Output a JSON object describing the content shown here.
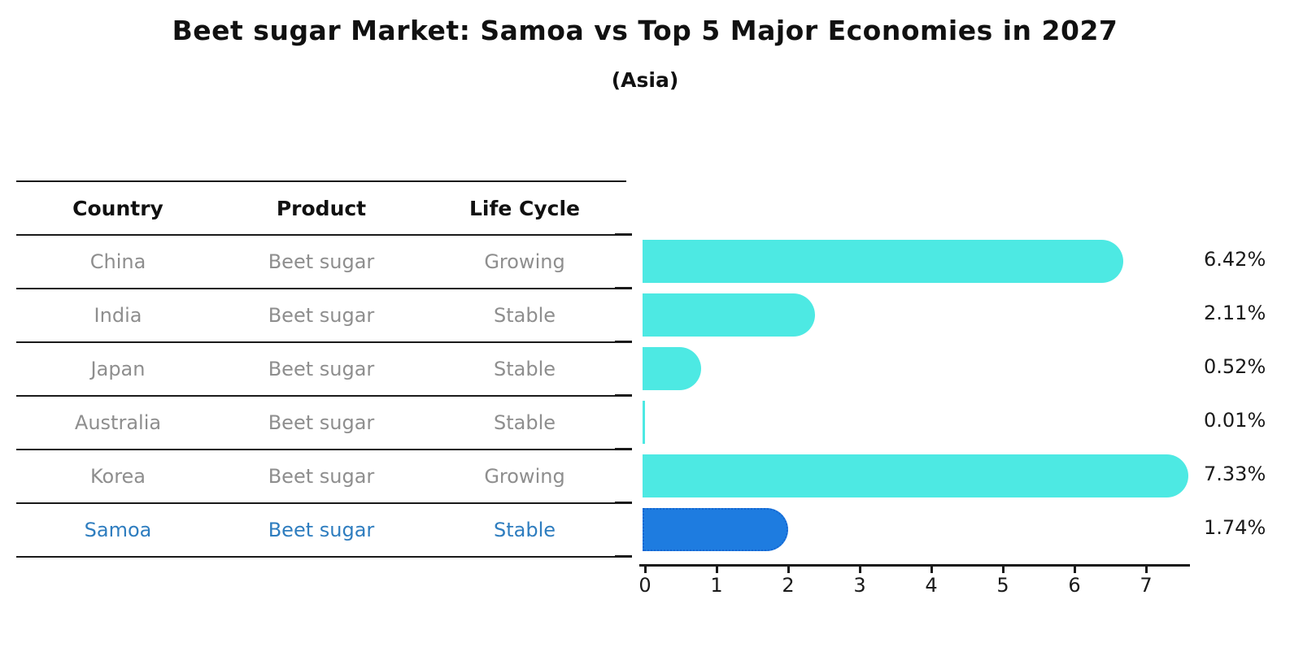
{
  "title": "Beet sugar Market: Samoa vs Top 5 Major Economies in 2027",
  "subtitle": "(Asia)",
  "table": {
    "headers": [
      "Country",
      "Product",
      "Life Cycle"
    ],
    "rows": [
      {
        "country": "China",
        "product": "Beet sugar",
        "life_cycle": "Growing",
        "highlight": false
      },
      {
        "country": "India",
        "product": "Beet sugar",
        "life_cycle": "Stable",
        "highlight": false
      },
      {
        "country": "Japan",
        "product": "Beet sugar",
        "life_cycle": "Stable",
        "highlight": false
      },
      {
        "country": "Australia",
        "product": "Beet sugar",
        "life_cycle": "Stable",
        "highlight": false
      },
      {
        "country": "Korea",
        "product": "Beet sugar",
        "life_cycle": "Growing",
        "highlight": false
      },
      {
        "country": "Samoa",
        "product": "Beet sugar",
        "life_cycle": "Stable",
        "highlight": true
      }
    ]
  },
  "chart_data": {
    "type": "bar",
    "orientation": "horizontal",
    "title": "Beet sugar Market: Samoa vs Top 5 Major Economies in 2027",
    "subtitle": "(Asia)",
    "categories": [
      "China",
      "India",
      "Japan",
      "Australia",
      "Korea",
      "Samoa"
    ],
    "values": [
      6.42,
      2.11,
      0.52,
      0.01,
      7.33,
      1.74
    ],
    "value_labels": [
      "6.42%",
      "2.11%",
      "0.52%",
      "0.01%",
      "7.33%",
      "1.74%"
    ],
    "x_ticks": [
      0,
      1,
      2,
      3,
      4,
      5,
      6,
      7
    ],
    "xlim": [
      0,
      7.66
    ],
    "grid": false,
    "legend": "none",
    "bar_color": "#4de9e3",
    "highlight_bar_color": "#1e7ce0",
    "highlight_border_color": "#1566d2",
    "highlight_index": 5,
    "highlight_category": "Samoa"
  },
  "colors": {
    "background": "#ffffff",
    "table_line": "#1a1a1a",
    "body_text": "#8e8e8e",
    "header_text": "#111111",
    "highlight_text": "#2e7dbf"
  }
}
